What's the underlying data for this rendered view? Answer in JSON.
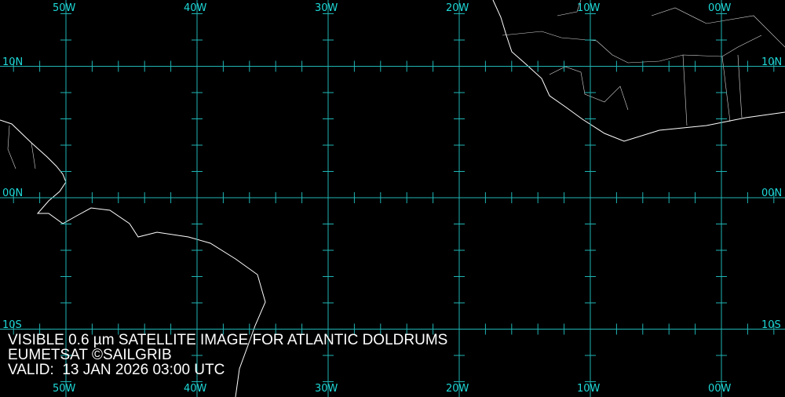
{
  "colors": {
    "grid": "#1fb4b4",
    "label": "#1ed8d8",
    "coast": "#ffffff",
    "background": "#000000"
  },
  "grid": {
    "longitudes": [
      {
        "value": -50,
        "label": "50W"
      },
      {
        "value": -40,
        "label": "40W"
      },
      {
        "value": -30,
        "label": "30W"
      },
      {
        "value": -20,
        "label": "20W"
      },
      {
        "value": -10,
        "label": "10W"
      },
      {
        "value": 0,
        "label": "00W"
      }
    ],
    "latitudes": [
      {
        "value": 10,
        "label": "10N"
      },
      {
        "value": 0,
        "label": "00N"
      },
      {
        "value": -10,
        "label": "10S"
      }
    ],
    "minor_tick_interval_deg": 2
  },
  "caption": {
    "line1": "VISIBLE 0.6 µm SATELLITE IMAGE FOR ATLANTIC DOLDRUMS",
    "line2": "EUMETSAT ©SAILGRIB",
    "line3": "VALID:  13 JAN 2026 03:00 UTC"
  }
}
